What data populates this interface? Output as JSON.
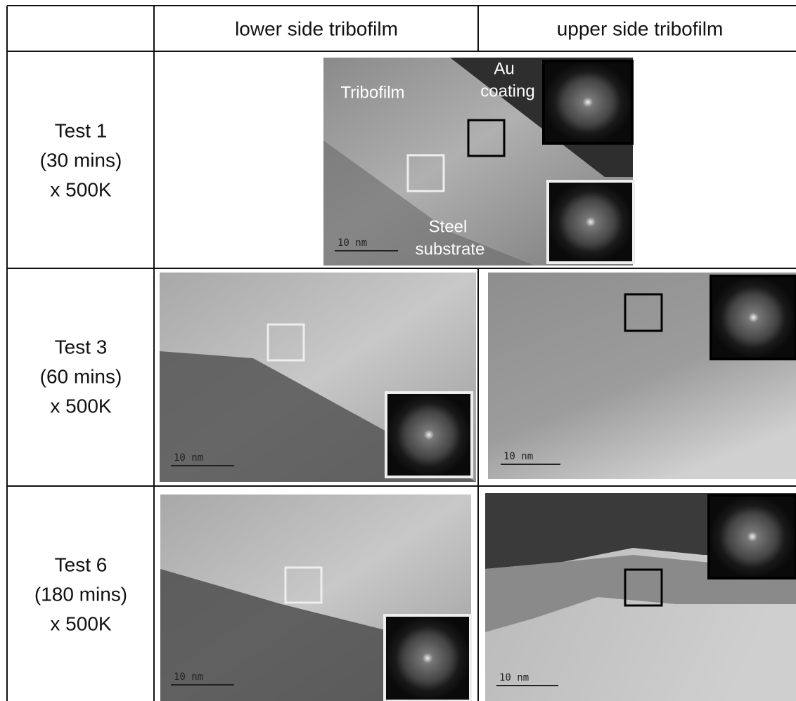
{
  "table": {
    "columns": [
      "lower side tribofilm",
      "upper side tribofilm"
    ],
    "rows": [
      {
        "label": [
          "Test 1",
          "(30 mins)",
          "x 500K"
        ],
        "image": {
          "labels": [
            "Au",
            "coating",
            "Tribofilm",
            "Steel",
            "substrate"
          ],
          "scale_bar": "10 nm"
        }
      },
      {
        "label": [
          "Test 3",
          "(60 mins)",
          "x 500K"
        ],
        "images": [
          {
            "scale_bar": "10 nm"
          },
          {
            "scale_bar": "10 nm"
          }
        ]
      },
      {
        "label": [
          "Test 6",
          "(180 mins)",
          "x 500K"
        ],
        "images": [
          {
            "scale_bar": "10 nm"
          },
          {
            "scale_bar": "10 nm"
          }
        ]
      }
    ]
  }
}
